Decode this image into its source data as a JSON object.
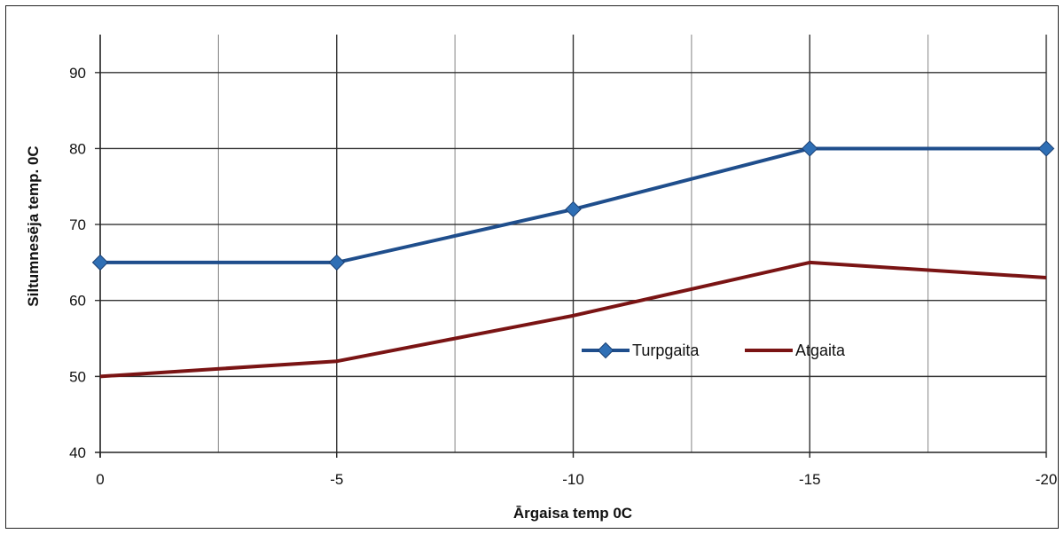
{
  "chart_data": {
    "type": "line",
    "title": "",
    "xlabel": "Ārgaisa temp 0C",
    "ylabel": "Siltumnesēja temp. 0C",
    "x": [
      0,
      -5,
      -10,
      -15,
      -20
    ],
    "x_tick_labels": [
      "0",
      "-5",
      "-10",
      "-15",
      "-20"
    ],
    "xlim": [
      0,
      -20
    ],
    "ylim": [
      40,
      95
    ],
    "y_ticks": [
      40,
      50,
      60,
      70,
      80,
      90
    ],
    "grid": true,
    "legend_position": "center-right inside plot",
    "series": [
      {
        "name": "Turpgaita",
        "values": [
          65,
          65,
          72,
          80,
          80
        ],
        "color": "#1f4e8c",
        "marker": "diamond"
      },
      {
        "name": "Atgaita",
        "values": [
          50,
          52,
          58,
          65,
          63
        ],
        "color": "#7a1414",
        "marker": "none"
      }
    ]
  }
}
